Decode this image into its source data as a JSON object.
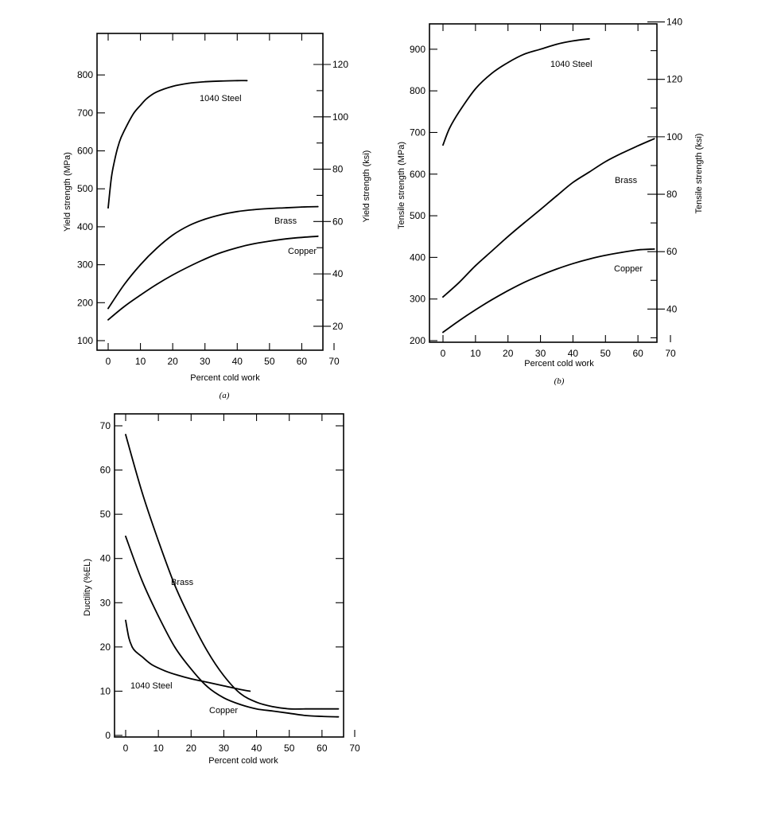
{
  "chart_data": [
    {
      "type": "line",
      "panel_label": "(a)",
      "xlabel": "Percent cold work",
      "ylabel": "Yield strength (MPa)",
      "y2label": "Yield strength (ksi)",
      "xlim": [
        0,
        70
      ],
      "ylim": [
        100,
        880
      ],
      "y2lim": [
        14.5,
        127.6
      ],
      "x_ticks": [
        "0",
        "10",
        "20",
        "30",
        "40",
        "50",
        "60",
        "70"
      ],
      "y_ticks": [
        "100",
        "200",
        "300",
        "400",
        "500",
        "600",
        "700",
        "800"
      ],
      "y2_ticks": [
        "20",
        "40",
        "60",
        "80",
        "100",
        "120"
      ],
      "grid": false,
      "series": [
        {
          "name": "1040 Steel",
          "x": [
            0,
            1,
            2,
            3,
            4,
            6,
            8,
            10,
            12,
            15,
            20,
            25,
            30,
            35,
            40,
            43
          ],
          "y": [
            450,
            530,
            575,
            610,
            635,
            670,
            700,
            720,
            738,
            755,
            770,
            778,
            782,
            784,
            785,
            785
          ]
        },
        {
          "name": "Brass",
          "x": [
            0,
            5,
            10,
            15,
            20,
            25,
            30,
            35,
            40,
            45,
            50,
            55,
            60,
            65
          ],
          "y": [
            185,
            248,
            300,
            343,
            378,
            403,
            420,
            432,
            440,
            445,
            448,
            450,
            452,
            453
          ]
        },
        {
          "name": "Copper",
          "x": [
            0,
            5,
            10,
            15,
            20,
            25,
            30,
            35,
            40,
            45,
            50,
            55,
            60,
            65
          ],
          "y": [
            155,
            190,
            220,
            248,
            273,
            295,
            315,
            332,
            345,
            355,
            362,
            368,
            372,
            375
          ]
        }
      ]
    },
    {
      "type": "line",
      "panel_label": "(b)",
      "xlabel": "Percent cold work",
      "ylabel": "Tensile strength (MPa)",
      "y2label": "Tensile strength (ksi)",
      "xlim": [
        0,
        70
      ],
      "ylim": [
        200,
        980
      ],
      "y2lim": [
        29,
        142.1
      ],
      "x_ticks": [
        "0",
        "10",
        "20",
        "30",
        "40",
        "50",
        "60",
        "70"
      ],
      "y_ticks": [
        "200",
        "300",
        "400",
        "500",
        "600",
        "700",
        "800",
        "900"
      ],
      "y2_ticks": [
        "40",
        "60",
        "80",
        "100",
        "120",
        "140"
      ],
      "grid": false,
      "series": [
        {
          "name": "1040 Steel",
          "x": [
            0,
            2,
            5,
            10,
            15,
            20,
            25,
            30,
            35,
            40,
            45
          ],
          "y": [
            670,
            710,
            750,
            805,
            842,
            868,
            888,
            900,
            912,
            920,
            925
          ]
        },
        {
          "name": "Brass",
          "x": [
            0,
            5,
            10,
            15,
            20,
            25,
            30,
            35,
            40,
            45,
            50,
            55,
            60,
            65
          ],
          "y": [
            305,
            340,
            380,
            415,
            450,
            483,
            515,
            548,
            580,
            605,
            630,
            650,
            668,
            685
          ]
        },
        {
          "name": "Copper",
          "x": [
            0,
            5,
            10,
            15,
            20,
            25,
            30,
            35,
            40,
            45,
            50,
            55,
            60,
            65
          ],
          "y": [
            220,
            248,
            274,
            298,
            320,
            340,
            357,
            372,
            385,
            396,
            405,
            412,
            418,
            420
          ]
        }
      ]
    },
    {
      "type": "line",
      "panel_label": "",
      "xlabel": "Percent cold work",
      "ylabel": "Ductility (%EL)",
      "xlim": [
        0,
        70
      ],
      "ylim": [
        0,
        70
      ],
      "x_ticks": [
        "0",
        "10",
        "20",
        "30",
        "40",
        "50",
        "60",
        "70"
      ],
      "y_ticks": [
        "0",
        "10",
        "20",
        "30",
        "40",
        "50",
        "60",
        "70"
      ],
      "grid": false,
      "series": [
        {
          "name": "Brass",
          "x": [
            0,
            5,
            10,
            15,
            20,
            25,
            30,
            35,
            40,
            45,
            50,
            55,
            60,
            65
          ],
          "y": [
            68,
            55,
            44,
            34,
            26,
            19,
            13.5,
            9.5,
            7.5,
            6.5,
            6,
            6,
            6,
            6
          ]
        },
        {
          "name": "Copper",
          "x": [
            0,
            5,
            10,
            15,
            20,
            25,
            30,
            35,
            40,
            45,
            50,
            55,
            60,
            65
          ],
          "y": [
            45,
            35,
            27,
            20,
            15,
            11,
            8.5,
            7,
            6,
            5.5,
            5,
            4.5,
            4.3,
            4.2
          ]
        },
        {
          "name": "1040 Steel",
          "x": [
            0,
            1,
            2,
            3,
            5,
            8,
            12,
            16,
            20,
            25,
            30,
            35,
            38
          ],
          "y": [
            26,
            22,
            20,
            19,
            17.8,
            16,
            14.6,
            13.6,
            12.8,
            12,
            11.2,
            10.4,
            10
          ]
        }
      ]
    }
  ]
}
